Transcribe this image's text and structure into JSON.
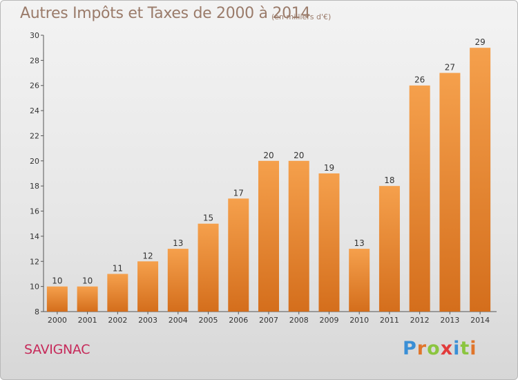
{
  "title": "Autres Impôts et Taxes de 2000 à 2014",
  "subtitle": "(en milliers d'€)",
  "location": "SAVIGNAC",
  "logo": {
    "letters": [
      "P",
      "r",
      "o",
      "x",
      "i",
      "t",
      "i"
    ],
    "colors": [
      "#3a8fd6",
      "#e0752b",
      "#8bc53f",
      "#e23b3b",
      "#3a8fd6",
      "#8bc53f",
      "#e0752b"
    ]
  },
  "colors": {
    "bar_top": "#f5a04c",
    "bar_bottom": "#d46e1c",
    "title": "#9a7b6a",
    "location": "#c62a5a"
  },
  "chart_data": {
    "type": "bar",
    "title": "Autres Impôts et Taxes de 2000 à 2014",
    "subtitle": "(en milliers d'€)",
    "xlabel": "",
    "ylabel": "",
    "categories": [
      "2000",
      "2001",
      "2002",
      "2003",
      "2004",
      "2005",
      "2006",
      "2007",
      "2008",
      "2009",
      "2010",
      "2011",
      "2012",
      "2013",
      "2014"
    ],
    "values": [
      10,
      10,
      11,
      12,
      13,
      15,
      17,
      20,
      20,
      19,
      13,
      18,
      26,
      27,
      29
    ],
    "ylim": [
      8,
      30
    ],
    "yticks": [
      8,
      10,
      12,
      14,
      16,
      18,
      20,
      22,
      24,
      26,
      28,
      30
    ],
    "grid": false,
    "legend": "none"
  }
}
